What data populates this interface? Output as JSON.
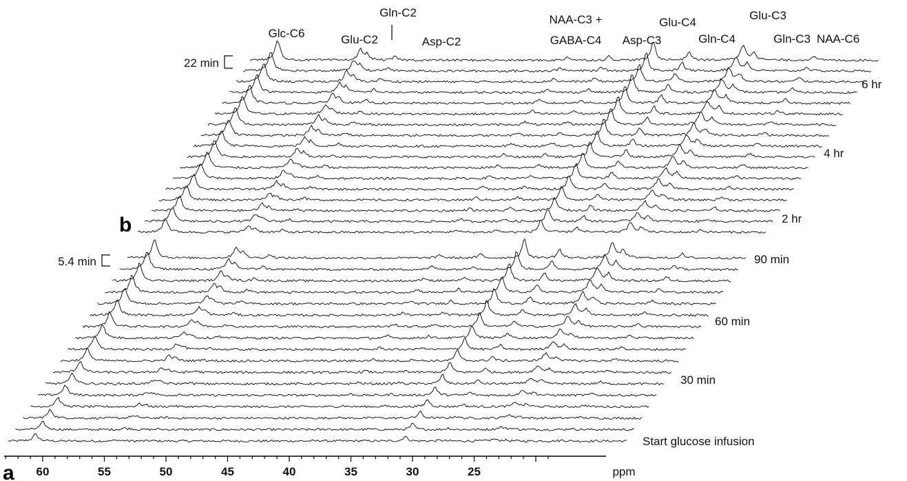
{
  "chart_data": {
    "type": "line",
    "description_type": "stacked_spectra",
    "xlabel": "ppm",
    "xlim": [
      65,
      19
    ],
    "x_reversed": true,
    "x_ticks": [
      60,
      55,
      50,
      45,
      40,
      35,
      30,
      25
    ],
    "peak_labels": [
      "Glc-C6",
      "Glu-C2",
      "Gln-C2",
      "Asp-C2",
      "NAA-C3 +",
      "GABA-C4",
      "Asp-C3",
      "Glu-C4",
      "Gln-C4",
      "Glu-C3",
      "Gln-C3",
      "NAA-C6"
    ],
    "peaks_ppm": {
      "Glc-C6": 61.5,
      "Glu-C2": 55.5,
      "Gln-C2": 55.0,
      "Asp-C2": 53.0,
      "NAA-C3_GABA-C4": 40.5,
      "Asp-C3": 37.5,
      "Glu-C4": 34.3,
      "Gln-C4": 31.7,
      "Glu-C3": 27.8,
      "Gln-C3": 27.0,
      "NAA-C6": 22.7
    },
    "time_labels": [
      "6 hr",
      "4 hr",
      "2 hr",
      "90 min",
      "60 min",
      "30 min",
      "Start glucose infusion"
    ],
    "time_scales": [
      {
        "label": "22 min",
        "panel": "b"
      },
      {
        "label": "5.4 min",
        "panel": "a"
      }
    ],
    "panels": [
      "b",
      "a"
    ],
    "series": [
      {
        "panel": "a",
        "spectra_count": 17,
        "time_step_min": 5.4
      },
      {
        "panel": "b",
        "spectra_count": 17,
        "time_step_min": 22
      }
    ]
  }
}
